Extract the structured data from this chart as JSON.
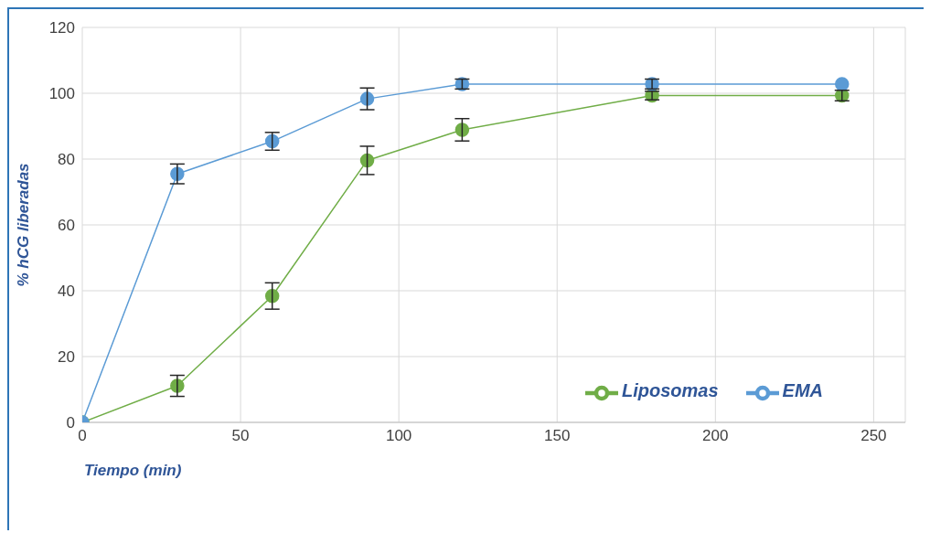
{
  "chart_data": {
    "type": "line",
    "xlabel": "Tiempo (min)",
    "ylabel": "% hCG liberadas",
    "x": [
      0,
      30,
      60,
      90,
      120,
      180,
      240
    ],
    "series": [
      {
        "name": "Liposomas",
        "color": "#70ad47",
        "values": [
          0,
          11.1,
          38.4,
          79.6,
          88.9,
          99.3,
          99.3
        ],
        "errors": [
          null,
          3.2,
          4,
          4.3,
          3.4,
          1.3,
          1.6
        ]
      },
      {
        "name": "EMA",
        "color": "#5b9bd5",
        "values": [
          0,
          75.5,
          85.4,
          98.3,
          102.8,
          102.8,
          102.8
        ],
        "errors": [
          null,
          3,
          2.7,
          3.3,
          1.5,
          1.5,
          null
        ]
      }
    ],
    "xlim": [
      0,
      260
    ],
    "xticks": [
      0,
      50,
      100,
      150,
      200,
      250
    ],
    "ylim": [
      0,
      120
    ],
    "yticks": [
      0,
      20,
      40,
      60,
      80,
      100,
      120
    ],
    "grid": true,
    "legend": "bottom right",
    "marker": "circle",
    "line_style": "solid"
  }
}
